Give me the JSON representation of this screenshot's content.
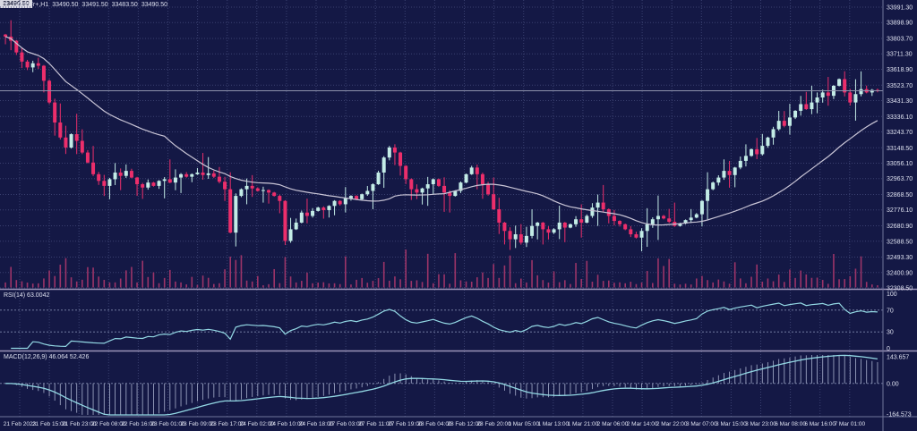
{
  "header": {
    "collapse_icon": "▼",
    "symbol_period": "GO30Fr+,H1",
    "open": "33490.50",
    "high": "33491.50",
    "low": "33483.50",
    "close": "33490.50"
  },
  "panels": {
    "rsi_label": "RSI(14) 63.0042",
    "macd_label": "MACD(12,26,9) 46.064 52.426"
  },
  "axes": {
    "current_price_label": "33490.50",
    "price_labels": [
      "33991.30",
      "33898.90",
      "33803.70",
      "33711.30",
      "33618.90",
      "33523.70",
      "33431.30",
      "33336.10",
      "33243.70",
      "33148.50",
      "33056.10",
      "32963.70",
      "32868.50",
      "32776.10",
      "32680.90",
      "32588.50",
      "32493.30",
      "32400.90",
      "32308.50"
    ],
    "time_labels": [
      "21 Feb 2023",
      "21 Feb 15:00",
      "21 Feb 23:00",
      "22 Feb 08:00",
      "22 Feb 16:00",
      "23 Feb 01:00",
      "23 Feb 09:00",
      "23 Feb 17:00",
      "24 Feb 02:00",
      "24 Feb 10:00",
      "24 Feb 18:00",
      "27 Feb 03:00",
      "27 Feb 11:00",
      "27 Feb 19:00",
      "28 Feb 04:00",
      "28 Feb 12:00",
      "28 Feb 20:00",
      "1 Mar 05:00",
      "1 Mar 13:00",
      "1 Mar 21:00",
      "2 Mar 06:00",
      "2 Mar 14:00",
      "2 Mar 22:00",
      "3 Mar 07:00",
      "3 Mar 15:00",
      "3 Mar 23:00",
      "6 Mar 08:00",
      "6 Mar 16:00",
      "7 Mar 01:00"
    ],
    "rsi_levels": [
      "100",
      "70",
      "30",
      "0"
    ],
    "macd_levels": [
      "143.657",
      "0.00",
      "-164.573"
    ]
  },
  "colors": {
    "background": "#141845",
    "grid": "#3a4070",
    "bull": "#c3ece6",
    "bear": "#ec2e6b",
    "volume": "#9c3468",
    "ma_line": "#c9c5d6",
    "price_line": "#8d92ac",
    "indicator_line": "#93d8e4",
    "macd_histogram": "#9aa2c0",
    "text": "#dde0ef",
    "separator": "#9b94b8",
    "axis_border": "#70769c",
    "level_dash": "#7f87ad"
  },
  "chart_data": {
    "type": "candlestick+indicators",
    "symbol": "GO30Fr+",
    "timeframe": "H1",
    "title": "GO30Fr+,H1 33490.50 33491.50 33483.50 33490.50",
    "x_range": [
      "21 Feb 2023",
      "7 Mar 01:00"
    ],
    "ylim": [
      32308.5,
      33991.3
    ],
    "current_price": 33490.5,
    "grid": true,
    "legend_position": "none",
    "rsi_range": [
      0,
      100
    ],
    "rsi_guides": [
      70,
      30
    ],
    "rsi_last": 63.0042,
    "macd_range": [
      -164.573,
      143.657
    ],
    "macd_last_main": 46.064,
    "macd_last_signal": 52.426,
    "indicators": [
      {
        "name": "SMA",
        "period": 30
      },
      {
        "name": "RSI",
        "period": 14
      },
      {
        "name": "MACD",
        "fast": 12,
        "slow": 26,
        "signal": 9
      },
      {
        "name": "Volume",
        "derived_from_closes": true
      }
    ],
    "closes": [
      33815,
      33790,
      33720,
      33665,
      33630,
      33655,
      33640,
      33550,
      33420,
      33300,
      33210,
      33150,
      33230,
      33190,
      33120,
      33060,
      32990,
      32950,
      32920,
      32960,
      33000,
      32980,
      33010,
      32970,
      32930,
      32910,
      32940,
      32920,
      32950,
      32960,
      32940,
      32970,
      32990,
      32975,
      32990,
      33000,
      32985,
      32995,
      32975,
      32945,
      32900,
      32640,
      32860,
      32900,
      32920,
      32905,
      32890,
      32895,
      32880,
      32860,
      32830,
      32590,
      32660,
      32700,
      32760,
      32740,
      32770,
      32790,
      32775,
      32800,
      32830,
      32810,
      32845,
      32860,
      32840,
      32870,
      32890,
      32930,
      33000,
      33090,
      33150,
      33120,
      33040,
      32960,
      32900,
      32880,
      32905,
      32930,
      32960,
      32920,
      32880,
      32860,
      32890,
      32940,
      32990,
      33030,
      32990,
      32930,
      32870,
      32780,
      32700,
      32650,
      32600,
      32630,
      32580,
      32620,
      32680,
      32700,
      32660,
      32640,
      32660,
      32700,
      32670,
      32690,
      32720,
      32700,
      32740,
      32790,
      32820,
      32780,
      32740,
      32710,
      32690,
      32660,
      32630,
      32610,
      32650,
      32690,
      32720,
      32740,
      32725,
      32705,
      32680,
      32695,
      32715,
      32730,
      32750,
      32830,
      32900,
      32940,
      32970,
      33010,
      32985,
      33030,
      33070,
      33100,
      33140,
      33110,
      33160,
      33210,
      33260,
      33310,
      33280,
      33330,
      33370,
      33410,
      33380,
      33420,
      33450,
      33480,
      33460,
      33520,
      33560,
      33480,
      33420,
      33470,
      33500,
      33480,
      33495,
      33490
    ]
  }
}
